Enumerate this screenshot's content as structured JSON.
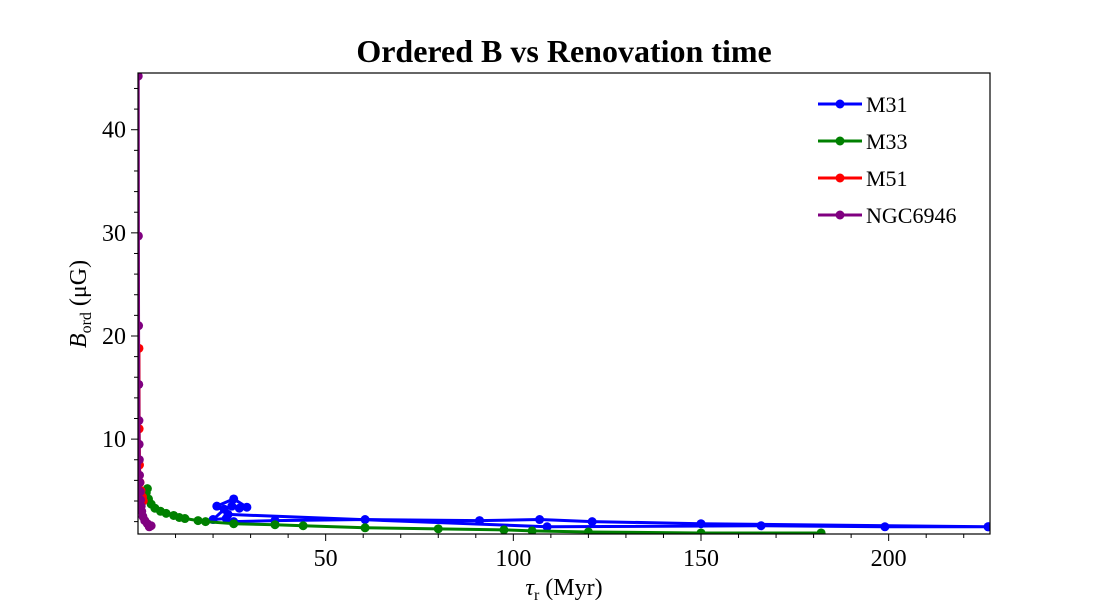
{
  "chart_data": {
    "type": "line",
    "title": "Ordered B vs Renovation time",
    "xlabel": {
      "symbol": "τ",
      "sub": "r",
      "unit": " (Myr)"
    },
    "ylabel": {
      "symbol": "B",
      "sub": "ord",
      "unit": " (μG)"
    },
    "xlim": [
      0,
      227
    ],
    "ylim": [
      0.8,
      45.5
    ],
    "xticks": [
      50,
      100,
      150,
      200
    ],
    "yticks": [
      10,
      20,
      30,
      40
    ],
    "grid": false,
    "legend_position": "top-right",
    "series": [
      {
        "name": "M31",
        "color": "#0000ff",
        "points": [
          [
            226.5,
            1.5
          ],
          [
            150,
            1.8
          ],
          [
            121,
            2.0
          ],
          [
            107,
            2.2
          ],
          [
            91,
            2.1
          ],
          [
            60.5,
            2.2
          ],
          [
            36.5,
            2.1
          ],
          [
            25.5,
            2.0
          ],
          [
            23.5,
            2.3
          ],
          [
            20,
            2.2
          ],
          [
            23,
            3.2
          ],
          [
            25,
            3.5
          ],
          [
            27,
            3.3
          ],
          [
            29,
            3.4
          ],
          [
            25.5,
            4.2
          ],
          [
            21,
            3.5
          ],
          [
            24,
            2.7
          ],
          [
            109,
            1.5
          ],
          [
            166,
            1.6
          ],
          [
            199,
            1.5
          ],
          [
            226.5,
            1.5
          ]
        ]
      },
      {
        "name": "M33",
        "color": "#008000",
        "points": [
          [
            2.5,
            5.2
          ],
          [
            2.2,
            4.8
          ],
          [
            2.8,
            4.2
          ],
          [
            3.5,
            3.7
          ],
          [
            4.5,
            3.3
          ],
          [
            6,
            3.0
          ],
          [
            7.5,
            2.8
          ],
          [
            9.5,
            2.6
          ],
          [
            11,
            2.4
          ],
          [
            12.5,
            2.3
          ],
          [
            16,
            2.1
          ],
          [
            18,
            2.0
          ],
          [
            25.5,
            1.8
          ],
          [
            36.5,
            1.7
          ],
          [
            44,
            1.6
          ],
          [
            60.5,
            1.4
          ],
          [
            80,
            1.3
          ],
          [
            97.5,
            1.2
          ],
          [
            105,
            1.1
          ],
          [
            120,
            1.0
          ],
          [
            150,
            0.9
          ],
          [
            182,
            0.9
          ]
        ]
      },
      {
        "name": "M51",
        "color": "#ff0000",
        "points": [
          [
            0.25,
            18.8
          ],
          [
            0.3,
            11.0
          ],
          [
            0.4,
            7.5
          ],
          [
            0.55,
            5.8
          ],
          [
            0.8,
            5.0
          ],
          [
            1.2,
            4.4
          ],
          [
            1.4,
            4.0
          ]
        ]
      },
      {
        "name": "NGC6946",
        "color": "#800080",
        "points": [
          [
            0.05,
            45.2
          ],
          [
            0.1,
            29.7
          ],
          [
            0.15,
            21.0
          ],
          [
            0.2,
            15.3
          ],
          [
            0.25,
            11.8
          ],
          [
            0.3,
            9.5
          ],
          [
            0.35,
            8.0
          ],
          [
            0.4,
            6.5
          ],
          [
            0.5,
            5.8
          ],
          [
            0.6,
            4.9
          ],
          [
            0.7,
            4.1
          ],
          [
            0.85,
            3.5
          ],
          [
            1.0,
            3.0
          ],
          [
            1.3,
            2.5
          ],
          [
            1.8,
            2.1
          ],
          [
            2.5,
            1.8
          ],
          [
            3.0,
            1.5
          ],
          [
            3.5,
            1.6
          ]
        ]
      }
    ]
  }
}
